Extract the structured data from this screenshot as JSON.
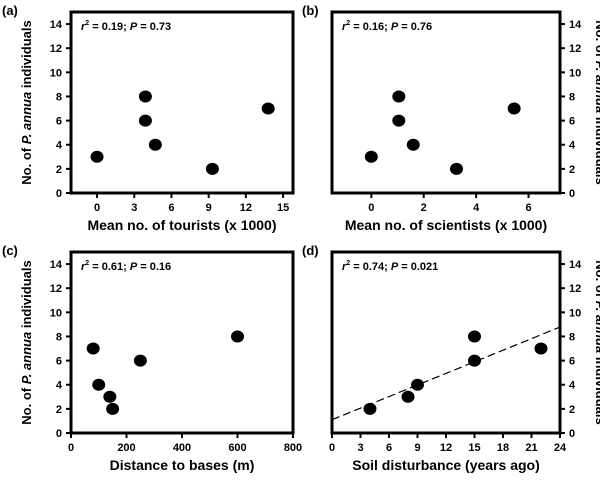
{
  "chart_data": [
    {
      "type": "scatter",
      "panel_label": "(a)",
      "annotation": {
        "r2_symbol": "r",
        "r2_exp": "2",
        "r2_value": "0.19",
        "p_symbol": "P",
        "p_value": "0.73"
      },
      "xlabel": "Mean no. of tourists (x 1000)",
      "ylabel": {
        "pre": "No. of ",
        "italic": "P. annua",
        "post": " individuals"
      },
      "yaxis_side": "left",
      "xlim": [
        -2.1,
        15.8
      ],
      "ylim": [
        0,
        15
      ],
      "xticks": [
        0,
        3,
        6,
        9,
        12,
        15
      ],
      "yticks": [
        0,
        2,
        4,
        6,
        8,
        10,
        12,
        14
      ],
      "x": [
        0,
        3.9,
        3.9,
        4.7,
        9.3,
        13.8
      ],
      "y": [
        3,
        8,
        6,
        4,
        2,
        7
      ]
    },
    {
      "type": "scatter",
      "panel_label": "(b)",
      "annotation": {
        "r2_symbol": "r",
        "r2_exp": "2",
        "r2_value": "0.16",
        "p_symbol": "P",
        "p_value": "0.76"
      },
      "xlabel": "Mean no. of scientists (x 1000)",
      "ylabel": {
        "pre": "No. of ",
        "italic": "P. annua",
        "post": " individuals"
      },
      "yaxis_side": "right",
      "xlim": [
        -1.5,
        7.2
      ],
      "ylim": [
        0,
        15
      ],
      "xticks": [
        0,
        2,
        4,
        6
      ],
      "yticks": [
        0,
        2,
        4,
        6,
        8,
        10,
        12,
        14
      ],
      "x": [
        0,
        1.05,
        1.05,
        1.6,
        3.25,
        5.45
      ],
      "y": [
        3,
        8,
        6,
        4,
        2,
        7
      ]
    },
    {
      "type": "scatter",
      "panel_label": "(c)",
      "annotation": {
        "r2_symbol": "r",
        "r2_exp": "2",
        "r2_value": "0.61",
        "p_symbol": "P",
        "p_value": "0.16"
      },
      "xlabel": "Distance to bases (m)",
      "ylabel": {
        "pre": "No. of ",
        "italic": "P. annua",
        "post": " individuals"
      },
      "yaxis_side": "left",
      "xlim": [
        0,
        800
      ],
      "ylim": [
        0,
        15
      ],
      "xticks": [
        0,
        200,
        400,
        600,
        800
      ],
      "yticks": [
        0,
        2,
        4,
        6,
        8,
        10,
        12,
        14
      ],
      "x": [
        80,
        100,
        140,
        150,
        250,
        600
      ],
      "y": [
        7,
        4,
        3,
        2,
        6,
        8
      ]
    },
    {
      "type": "scatter",
      "panel_label": "(d)",
      "annotation": {
        "r2_symbol": "r",
        "r2_exp": "2",
        "r2_value": "0.74",
        "p_symbol": "P",
        "p_value": "0.021"
      },
      "xlabel": "Soil disturbance (years ago)",
      "ylabel": {
        "pre": "No. of ",
        "italic": "P. annua",
        "post": " individuals"
      },
      "yaxis_side": "right",
      "xlim": [
        0,
        24
      ],
      "ylim": [
        0,
        15
      ],
      "xticks": [
        0,
        3,
        6,
        9,
        12,
        15,
        18,
        21,
        24
      ],
      "yticks": [
        0,
        2,
        4,
        6,
        8,
        10,
        12,
        14
      ],
      "x": [
        4,
        8,
        9,
        15,
        15,
        22
      ],
      "y": [
        2,
        3,
        4,
        8,
        6,
        7
      ],
      "fit_line": {
        "style": "dashed",
        "intercept": 1.1,
        "slope": 0.32
      }
    }
  ]
}
